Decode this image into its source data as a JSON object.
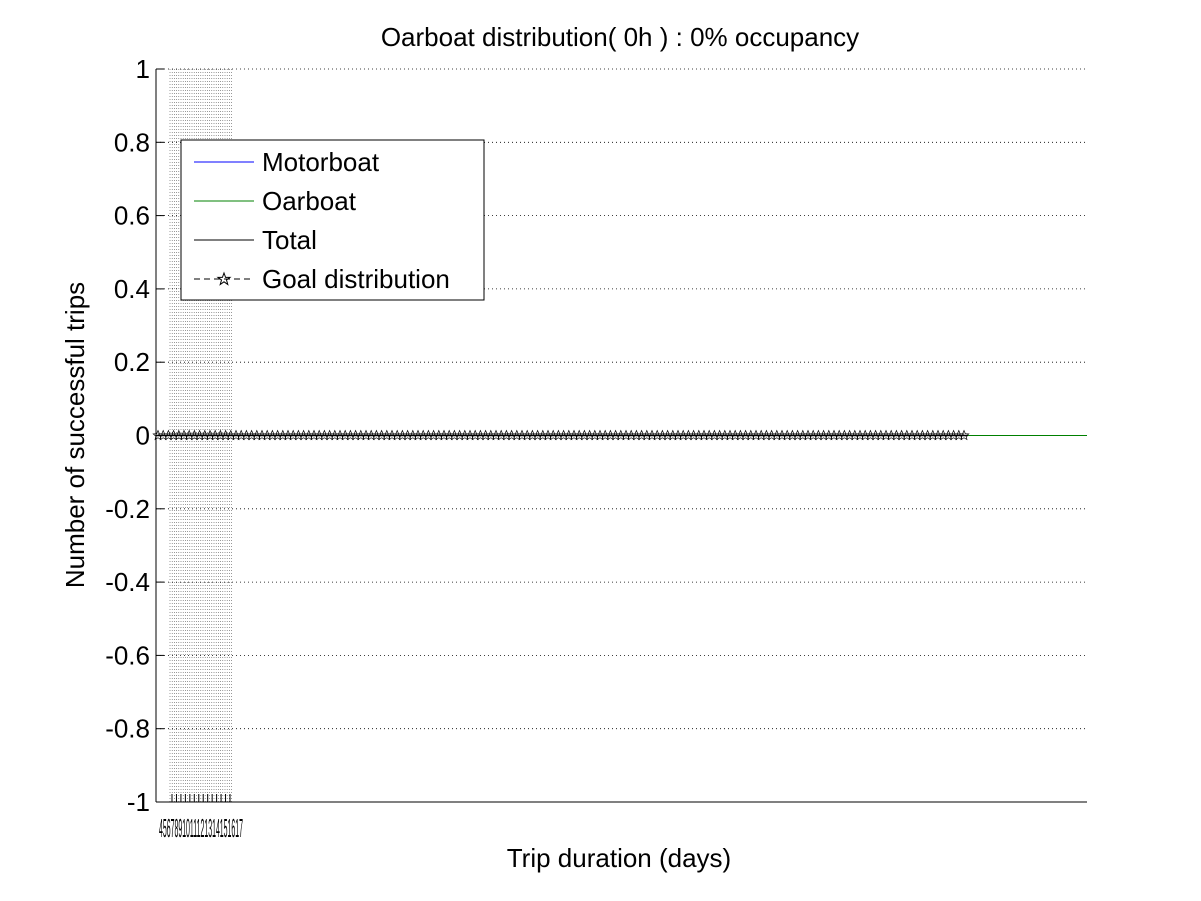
{
  "chart_data": {
    "type": "line",
    "title": "Oarboat distribution( 0h ) : 0% occupancy",
    "xlabel": "Trip duration (days)",
    "ylabel": "Number of successful trips",
    "ylim": [
      -1,
      1
    ],
    "yticks": [
      -1,
      -0.8,
      -0.6,
      -0.4,
      -0.2,
      0,
      0.2,
      0.4,
      0.6,
      0.8,
      1
    ],
    "ytick_labels": [
      "-1",
      "-0.8",
      "-0.6",
      "-0.4",
      "-0.2",
      "0",
      "0.2",
      "0.4",
      "0.6",
      "0.8",
      "1"
    ],
    "xtick_labels": [
      "4",
      "5",
      "6",
      "7",
      "8",
      "9",
      "10",
      "11",
      "12",
      "13",
      "14",
      "15",
      "16",
      "17"
    ],
    "xtick_label_text": "4567891011121314151617",
    "grid": "y-dotted",
    "legend_position": "top-left",
    "series": [
      {
        "name": "Motorboat",
        "color": "#0000ff",
        "style": "solid",
        "values": "all zero"
      },
      {
        "name": "Oarboat",
        "color": "#008000",
        "style": "solid",
        "values": "all zero"
      },
      {
        "name": "Total",
        "color": "#000000",
        "style": "solid",
        "values": "all zero"
      },
      {
        "name": "Goal distribution",
        "color": "#000000",
        "style": "dashed",
        "marker": "star",
        "values": "all zero"
      }
    ],
    "goal_y": 0,
    "total_y": 0
  }
}
